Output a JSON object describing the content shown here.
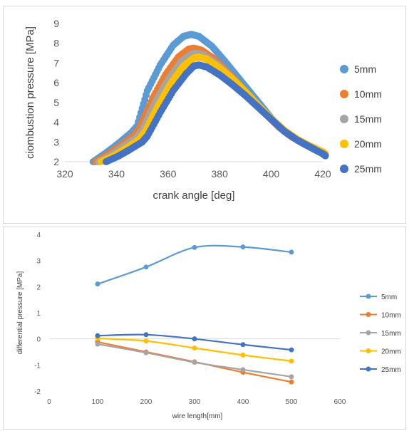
{
  "chart_data": [
    {
      "type": "scatter",
      "xlabel": "crank angle [deg]",
      "ylabel": "ciombustion pressure [MPa]",
      "xlim": [
        320,
        420
      ],
      "ylim": [
        2,
        9
      ],
      "xticks": [
        "320",
        "340",
        "360",
        "380",
        "400",
        "420"
      ],
      "yticks": [
        "2",
        "3",
        "4",
        "5",
        "6",
        "7",
        "8",
        "9"
      ],
      "grid": false,
      "legend": "right",
      "series": [
        {
          "name": "5mm",
          "color": "#5b9bd5",
          "x": [
            331,
            336,
            341,
            346,
            348,
            352,
            357,
            362,
            366,
            369,
            372,
            377,
            382,
            387,
            392,
            397,
            402,
            407,
            412,
            417,
            421
          ],
          "y": [
            2.0,
            2.45,
            2.95,
            3.5,
            3.8,
            5.6,
            6.9,
            7.9,
            8.35,
            8.45,
            8.35,
            7.85,
            7.1,
            6.3,
            5.5,
            4.7,
            3.9,
            3.35,
            2.95,
            2.6,
            2.35
          ]
        },
        {
          "name": "10mm",
          "color": "#ed7d31",
          "x": [
            332,
            337,
            342,
            347,
            349,
            354,
            359,
            364,
            368,
            370,
            373,
            378,
            383,
            388,
            393,
            398,
            403,
            408,
            413,
            418,
            421
          ],
          "y": [
            2.0,
            2.4,
            2.85,
            3.35,
            3.7,
            5.2,
            6.4,
            7.3,
            7.7,
            7.75,
            7.65,
            7.2,
            6.55,
            5.85,
            5.1,
            4.4,
            3.75,
            3.25,
            2.9,
            2.55,
            2.35
          ]
        },
        {
          "name": "15mm",
          "color": "#a5a5a5",
          "x": [
            333,
            338,
            343,
            348,
            350,
            355,
            360,
            365,
            369,
            371,
            374,
            379,
            384,
            389,
            394,
            399,
            404,
            409,
            414,
            419,
            421
          ],
          "y": [
            2.0,
            2.35,
            2.8,
            3.25,
            3.6,
            5.0,
            6.15,
            7.05,
            7.45,
            7.5,
            7.4,
            6.95,
            6.35,
            5.65,
            4.95,
            4.3,
            3.7,
            3.2,
            2.85,
            2.55,
            2.35
          ]
        },
        {
          "name": "20mm",
          "color": "#ffc000",
          "x": [
            334,
            339,
            344,
            349,
            351,
            356,
            361,
            366,
            370,
            372,
            375,
            380,
            385,
            390,
            395,
            400,
            405,
            410,
            415,
            420,
            421
          ],
          "y": [
            2.0,
            2.3,
            2.7,
            3.15,
            3.5,
            4.8,
            5.95,
            6.85,
            7.25,
            7.3,
            7.2,
            6.75,
            6.2,
            5.55,
            4.85,
            4.2,
            3.6,
            3.15,
            2.8,
            2.5,
            2.4
          ]
        },
        {
          "name": "25mm",
          "color": "#4472c4",
          "x": [
            336,
            341,
            345,
            350,
            352,
            357,
            362,
            367,
            370,
            372,
            375,
            380,
            385,
            390,
            395,
            400,
            405,
            410,
            415,
            420,
            421
          ],
          "y": [
            2.0,
            2.3,
            2.6,
            3.0,
            3.3,
            4.5,
            5.6,
            6.45,
            6.85,
            6.9,
            6.8,
            6.4,
            5.9,
            5.35,
            4.75,
            4.15,
            3.55,
            3.1,
            2.75,
            2.4,
            2.3
          ]
        }
      ]
    },
    {
      "type": "line",
      "xlabel": "wire length[mm]",
      "ylabel": "differential pressure [MPa]",
      "xlim": [
        0,
        600
      ],
      "ylim": [
        -2,
        4
      ],
      "xticks": [
        "0",
        "100",
        "200",
        "300",
        "400",
        "500",
        "600"
      ],
      "yticks": [
        "-2",
        "-1",
        "0",
        "1",
        "2",
        "3",
        "4"
      ],
      "grid": false,
      "legend": "right",
      "x": [
        100,
        200,
        300,
        400,
        500
      ],
      "series": [
        {
          "name": "5mm",
          "color": "#5b9bd5",
          "values": [
            2.1,
            2.75,
            3.5,
            3.52,
            3.32
          ]
        },
        {
          "name": "10mm",
          "color": "#ed7d31",
          "values": [
            -0.12,
            -0.5,
            -0.88,
            -1.28,
            -1.65
          ]
        },
        {
          "name": "15mm",
          "color": "#a5a5a5",
          "values": [
            -0.2,
            -0.53,
            -0.9,
            -1.18,
            -1.45
          ]
        },
        {
          "name": "20mm",
          "color": "#ffc000",
          "values": [
            0.02,
            -0.08,
            -0.35,
            -0.62,
            -0.85
          ]
        },
        {
          "name": "25mm",
          "color": "#4472c4",
          "values": [
            0.12,
            0.16,
            0.0,
            -0.22,
            -0.42
          ]
        }
      ]
    }
  ]
}
